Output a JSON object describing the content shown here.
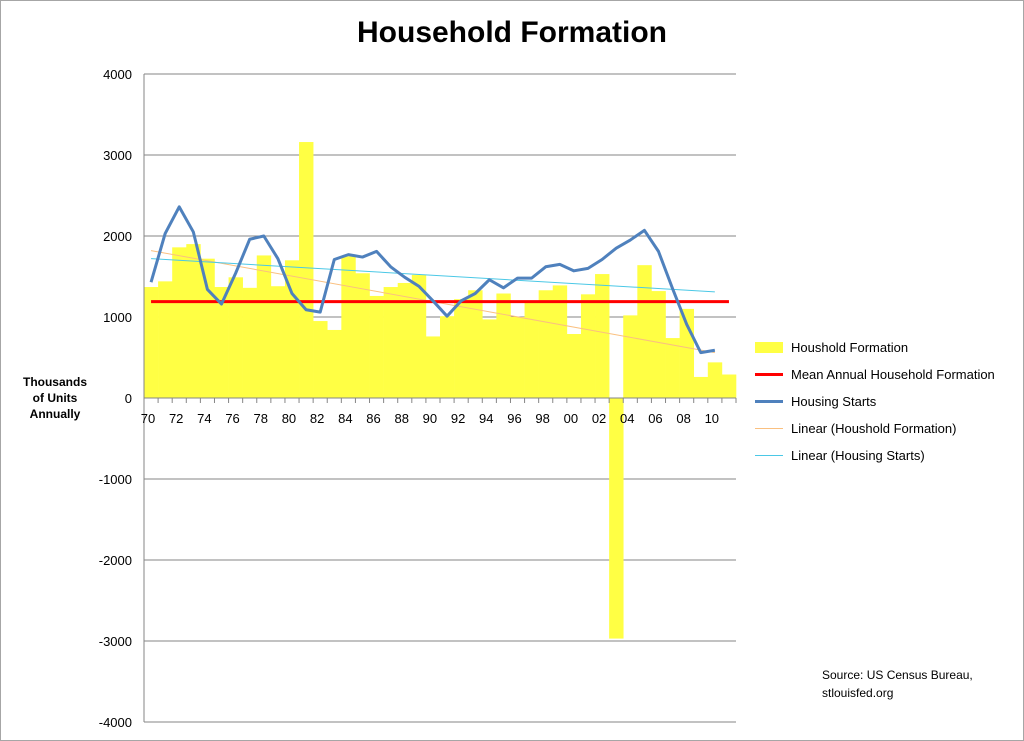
{
  "chart_data": {
    "type": "bar",
    "title": "Household Formation",
    "ylabel": "Thousands of Units Annually",
    "ylabel_lines": [
      "Thousands",
      "of Units",
      "Annually"
    ],
    "ylim": [
      -4000,
      4000
    ],
    "yticks": [
      4000,
      3000,
      2000,
      1000,
      0,
      -1000,
      -2000,
      -3000,
      -4000
    ],
    "grid": "horizontal",
    "legend_position": "right",
    "x_tick_labels": [
      "70",
      "72",
      "74",
      "76",
      "78",
      "80",
      "82",
      "84",
      "86",
      "88",
      "90",
      "92",
      "94",
      "96",
      "98",
      "00",
      "02",
      "04",
      "06",
      "08",
      "10"
    ],
    "years": [
      1970,
      1971,
      1972,
      1973,
      1974,
      1975,
      1976,
      1977,
      1978,
      1979,
      1980,
      1981,
      1982,
      1983,
      1984,
      1985,
      1986,
      1987,
      1988,
      1989,
      1990,
      1991,
      1992,
      1993,
      1994,
      1995,
      1996,
      1997,
      1998,
      1999,
      2000,
      2001,
      2002,
      2003,
      2004,
      2005,
      2006,
      2007,
      2008,
      2009,
      2010,
      2011
    ],
    "series": [
      {
        "name": "Houshold Formation",
        "kind": "bar",
        "color": "#ffff44",
        "values": [
          1370,
          1440,
          1860,
          1900,
          1720,
          1370,
          1490,
          1360,
          1760,
          1380,
          1700,
          3160,
          950,
          840,
          1750,
          1540,
          1260,
          1370,
          1420,
          1520,
          760,
          1010,
          1220,
          1330,
          970,
          1290,
          1000,
          1200,
          1330,
          1390,
          790,
          1280,
          1530,
          -2970,
          1020,
          1640,
          1320,
          740,
          1100,
          260,
          440,
          290
        ]
      },
      {
        "name": "Mean Annual Household Formation",
        "kind": "line",
        "color": "#ff0000",
        "value": 1190
      },
      {
        "name": "Housing Starts",
        "kind": "line",
        "color": "#4f81bd",
        "values": [
          1430,
          2030,
          2360,
          2050,
          1340,
          1160,
          1540,
          1960,
          2000,
          1720,
          1290,
          1090,
          1060,
          1710,
          1770,
          1740,
          1810,
          1620,
          1490,
          1380,
          1200,
          1010,
          1200,
          1290,
          1460,
          1360,
          1480,
          1480,
          1620,
          1650,
          1570,
          1600,
          1710,
          1850,
          1950,
          2070,
          1810,
          1350,
          910,
          560,
          590
        ]
      },
      {
        "name": "Linear (Houshold Formation)",
        "kind": "trendline",
        "color": "#fac080",
        "start": 1820,
        "end": 560
      },
      {
        "name": "Linear (Housing Starts)",
        "kind": "trendline",
        "color": "#4bc8e6",
        "start": 1720,
        "end": 1310
      }
    ],
    "source_lines": [
      "Source: US Census Bureau,",
      "stlouisfed.org"
    ]
  }
}
